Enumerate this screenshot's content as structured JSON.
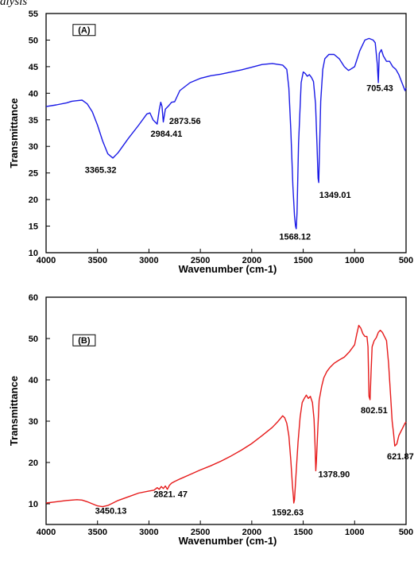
{
  "header": {
    "fragment": "alysis"
  },
  "chart_data": [
    {
      "type": "line",
      "panel_label": "(A)",
      "title": "",
      "xlabel": "Wavenumber (cm-1)",
      "ylabel": "Transmittance",
      "xlim": [
        4000,
        500
      ],
      "ylim": [
        10,
        55
      ],
      "xticks": [
        4000,
        3500,
        3000,
        2500,
        2000,
        1500,
        1000,
        500
      ],
      "yticks": [
        10,
        15,
        20,
        25,
        30,
        35,
        40,
        45,
        50,
        55
      ],
      "grid": false,
      "series": [
        {
          "color": "#1a1ae6",
          "x": [
            4000,
            3900,
            3800,
            3750,
            3700,
            3650,
            3600,
            3550,
            3500,
            3450,
            3400,
            3350,
            3300,
            3200,
            3100,
            3020,
            2990,
            2960,
            2940,
            2920,
            2900,
            2885,
            2873,
            2860,
            2840,
            2810,
            2780,
            2750,
            2700,
            2600,
            2500,
            2400,
            2300,
            2200,
            2100,
            2000,
            1900,
            1800,
            1700,
            1660,
            1640,
            1620,
            1600,
            1585,
            1575,
            1568,
            1560,
            1545,
            1520,
            1500,
            1480,
            1460,
            1440,
            1420,
            1400,
            1380,
            1365,
            1355,
            1349,
            1343,
            1330,
            1310,
            1290,
            1250,
            1200,
            1150,
            1100,
            1060,
            1040,
            1000,
            950,
            900,
            860,
            820,
            800,
            780,
            770,
            760,
            740,
            720,
            705,
            690,
            660,
            630,
            600,
            570,
            540,
            510,
            500
          ],
          "y": [
            37.5,
            37.8,
            38.2,
            38.5,
            38.6,
            38.7,
            38.0,
            36.5,
            34.0,
            31.0,
            28.6,
            27.8,
            28.8,
            31.5,
            34.0,
            36.1,
            36.3,
            35.0,
            34.6,
            34.2,
            36.9,
            38.3,
            37.5,
            34.6,
            37.0,
            37.6,
            38.3,
            38.4,
            40.5,
            42.0,
            42.8,
            43.3,
            43.6,
            44.0,
            44.4,
            44.9,
            45.4,
            45.6,
            45.3,
            44.5,
            41.0,
            33.0,
            22.5,
            17.0,
            15.0,
            14.5,
            17.5,
            30.5,
            42.0,
            44.0,
            43.7,
            43.2,
            43.5,
            43.0,
            42.2,
            38.0,
            30.0,
            24.0,
            23.2,
            28.0,
            38.5,
            44.5,
            46.5,
            47.3,
            47.3,
            46.5,
            45.0,
            44.3,
            44.5,
            45.0,
            48.0,
            50.0,
            50.3,
            50.0,
            49.5,
            45.5,
            42.0,
            47.5,
            48.2,
            47.0,
            46.5,
            46.0,
            46.0,
            45.0,
            44.5,
            43.5,
            42.0,
            40.5,
            41.0
          ]
        }
      ],
      "annotations": [
        {
          "text": "(A)",
          "x": 3630,
          "y": 51.3
        },
        {
          "text": "3365.32",
          "x": 3470,
          "y": 25.0
        },
        {
          "text": "2984.41",
          "x": 2830,
          "y": 31.8
        },
        {
          "text": "2873.56",
          "x": 2650,
          "y": 34.2
        },
        {
          "text": "1568.12",
          "x": 1580,
          "y": 12.5
        },
        {
          "text": "1349.01",
          "x": 1190,
          "y": 20.3
        },
        {
          "text": "705.43",
          "x": 755,
          "y": 40.4
        }
      ]
    },
    {
      "type": "line",
      "panel_label": "(B)",
      "title": "",
      "xlabel": "Wavenumber (cm-1)",
      "ylabel": "Transmittance",
      "xlim": [
        4000,
        500
      ],
      "ylim": [
        5,
        60
      ],
      "xticks": [
        4000,
        3500,
        3000,
        2500,
        2000,
        1500,
        1000,
        500
      ],
      "yticks": [
        10,
        20,
        30,
        40,
        50,
        60
      ],
      "grid": false,
      "series": [
        {
          "color": "#e61a1a",
          "x": [
            4000,
            3900,
            3800,
            3700,
            3650,
            3600,
            3550,
            3500,
            3450,
            3400,
            3350,
            3300,
            3200,
            3100,
            3000,
            2950,
            2920,
            2900,
            2880,
            2860,
            2840,
            2821,
            2800,
            2780,
            2750,
            2700,
            2600,
            2500,
            2400,
            2300,
            2200,
            2100,
            2000,
            1900,
            1800,
            1750,
            1720,
            1700,
            1680,
            1660,
            1640,
            1620,
            1605,
            1595,
            1592,
            1585,
            1570,
            1550,
            1530,
            1510,
            1490,
            1470,
            1450,
            1430,
            1410,
            1395,
            1385,
            1378,
            1372,
            1360,
            1345,
            1320,
            1300,
            1270,
            1240,
            1200,
            1150,
            1100,
            1050,
            1000,
            980,
            960,
            940,
            920,
            900,
            880,
            870,
            860,
            850,
            840,
            830,
            810,
            790,
            770,
            750,
            730,
            710,
            690,
            670,
            650,
            635,
            621,
            610,
            590,
            570,
            550,
            530,
            510,
            500
          ],
          "y": [
            10.2,
            10.5,
            10.8,
            11.0,
            10.9,
            10.5,
            10.0,
            9.5,
            9.3,
            9.6,
            10.2,
            10.8,
            11.7,
            12.6,
            13.1,
            13.3,
            13.9,
            13.5,
            14.2,
            13.7,
            14.3,
            13.5,
            14.5,
            15.0,
            15.4,
            16.0,
            17.1,
            18.2,
            19.2,
            20.3,
            21.6,
            23.0,
            24.6,
            26.5,
            28.5,
            29.8,
            30.7,
            31.3,
            30.8,
            29.5,
            26.5,
            20.5,
            14.5,
            11.5,
            10.2,
            11.0,
            17.0,
            25.0,
            31.0,
            34.5,
            35.5,
            36.3,
            35.5,
            36.0,
            34.5,
            30.5,
            24.0,
            18.0,
            20.0,
            27.0,
            35.0,
            38.5,
            40.5,
            42.0,
            43.0,
            44.0,
            44.8,
            45.5,
            46.8,
            48.5,
            51.0,
            53.2,
            52.5,
            51.2,
            50.5,
            50.5,
            48.0,
            36.0,
            35.2,
            42.0,
            48.0,
            49.5,
            50.2,
            51.5,
            52.0,
            51.5,
            50.5,
            49.5,
            44.0,
            36.0,
            30.0,
            27.0,
            24.0,
            24.5,
            26.5,
            27.5,
            28.5,
            29.5,
            29.8
          ]
        }
      ],
      "annotations": [
        {
          "text": "(B)",
          "x": 3630,
          "y": 48.8
        },
        {
          "text": "3450.13",
          "x": 3370,
          "y": 7.6
        },
        {
          "text": "2821. 47",
          "x": 2790,
          "y": 11.6
        },
        {
          "text": "1592.63",
          "x": 1650,
          "y": 7.2
        },
        {
          "text": "1378.90",
          "x": 1200,
          "y": 16.4
        },
        {
          "text": "802.51",
          "x": 810,
          "y": 31.9
        },
        {
          "text": "621.87",
          "x": 555,
          "y": 20.8
        }
      ]
    }
  ]
}
